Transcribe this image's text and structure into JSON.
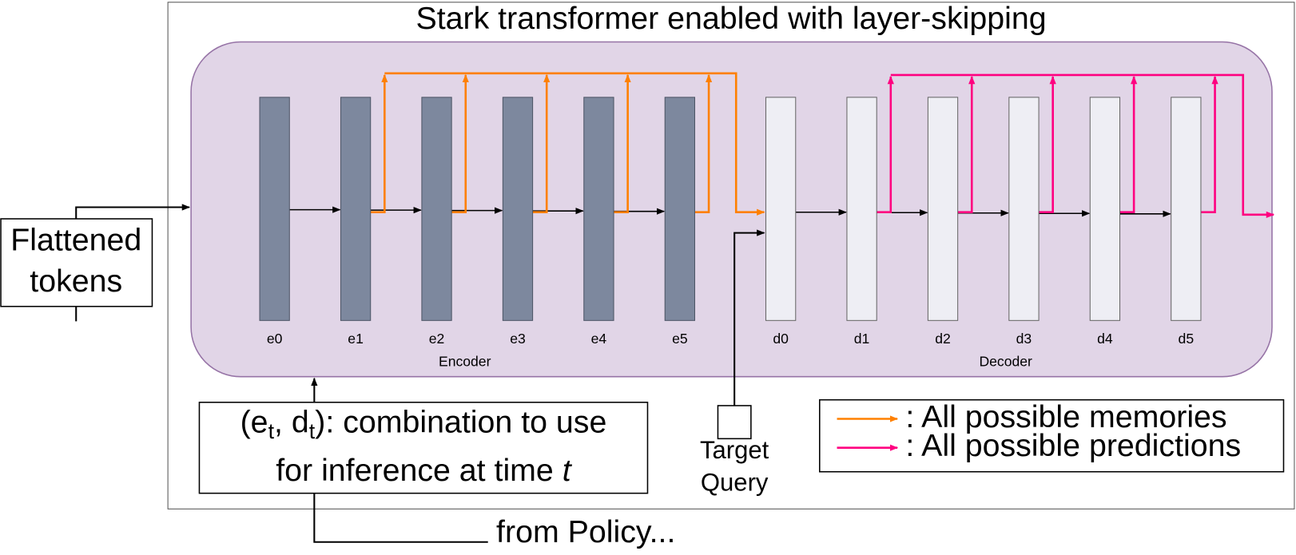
{
  "title": "Stark transformer enabled with layer-skipping",
  "encoder": {
    "label": "Encoder",
    "layers": [
      "e0",
      "e1",
      "e2",
      "e3",
      "e4",
      "e5"
    ]
  },
  "decoder": {
    "label": "Decoder",
    "layers": [
      "d0",
      "d1",
      "d2",
      "d3",
      "d4",
      "d5"
    ]
  },
  "input": {
    "lines": [
      "Flattened",
      "tokens"
    ]
  },
  "condition": {
    "prefix": "(e",
    "sub1": "t",
    "middle": ", d",
    "sub2": "t",
    "suffix": "): combination to use",
    "line2": "for inference at time ",
    "variable": "t"
  },
  "target_query": {
    "lines": [
      "Target",
      "Query"
    ]
  },
  "policy": "from Policy...",
  "legend": {
    "memories": ": All possible memories",
    "predictions": ": All possible predictions"
  }
}
